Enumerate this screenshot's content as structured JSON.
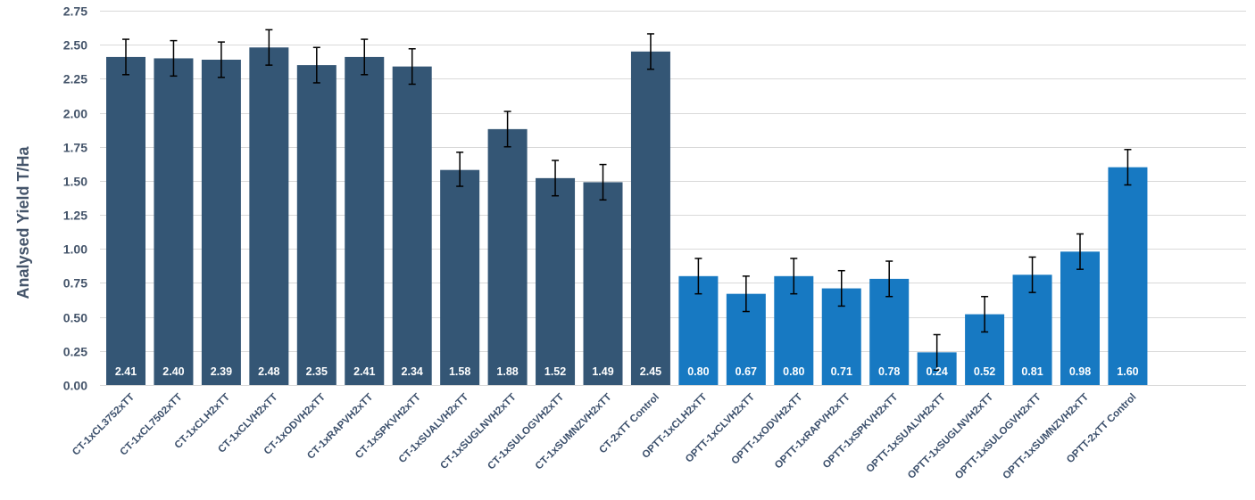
{
  "chart_data": {
    "type": "bar",
    "ylabel": "Analysed Yield T/Ha",
    "xlabel": "",
    "ylim": [
      0,
      2.75
    ],
    "yticks": [
      "0.00",
      "0.25",
      "0.50",
      "0.75",
      "1.00",
      "1.25",
      "1.50",
      "1.75",
      "2.00",
      "2.25",
      "2.50",
      "2.75"
    ],
    "grid": true,
    "colors": {
      "ct": "#345675",
      "optt": "#1779c2",
      "error": "#000000",
      "grid": "#d9d9d9"
    },
    "categories": [
      "CT-1xCL3752xTT",
      "CT-1xCL7502xTT",
      "CT-1xCLH2xTT",
      "CT-1xCLVH2xTT",
      "CT-1xODVH2xTT",
      "CT-1xRAPVH2xTT",
      "CT-1xSPKVH2xTT",
      "CT-1xSUALVH2xTT",
      "CT-1xSUGLNVH2xTT",
      "CT-1xSULOGVH2xTT",
      "CT-1xSUMNZVH2xTT",
      "CT-2xTT Control",
      "OPTT-1xCLH2xTT",
      "OPTT-1xCLVH2xTT",
      "OPTT-1xODVH2xTT",
      "OPTT-1xRAPVH2xTT",
      "OPTT-1xSPKVH2xTT",
      "OPTT-1xSUALVH2xTT",
      "OPTT-1xSUGLNVH2xTT",
      "OPTT-1xSULOGVH2xTT",
      "OPTT-1xSUMNZVH2xTT",
      "OPTT-2xTT Control"
    ],
    "values": [
      2.41,
      2.4,
      2.39,
      2.48,
      2.35,
      2.41,
      2.34,
      1.58,
      1.88,
      1.52,
      1.49,
      2.45,
      0.8,
      0.67,
      0.8,
      0.71,
      0.78,
      0.24,
      0.52,
      0.81,
      0.98,
      1.6
    ],
    "data_labels": [
      "2.41",
      "2.40",
      "2.39",
      "2.48",
      "2.35",
      "2.41",
      "2.34",
      "1.58",
      "1.88",
      "1.52",
      "1.49",
      "2.45",
      "0.80",
      "0.67",
      "0.80",
      "0.71",
      "0.78",
      "0.24",
      "0.52",
      "0.81",
      "0.98",
      "1.60"
    ],
    "groups": [
      "ct",
      "ct",
      "ct",
      "ct",
      "ct",
      "ct",
      "ct",
      "ct",
      "ct",
      "ct",
      "ct",
      "ct",
      "optt",
      "optt",
      "optt",
      "optt",
      "optt",
      "optt",
      "optt",
      "optt",
      "optt",
      "optt"
    ],
    "error_low": [
      2.28,
      2.27,
      2.26,
      2.35,
      2.22,
      2.28,
      2.21,
      1.46,
      1.75,
      1.39,
      1.36,
      2.32,
      0.67,
      0.54,
      0.67,
      0.58,
      0.65,
      0.11,
      0.39,
      0.68,
      0.85,
      1.47
    ],
    "error_high": [
      2.54,
      2.53,
      2.52,
      2.61,
      2.48,
      2.54,
      2.47,
      1.71,
      2.01,
      1.65,
      1.62,
      2.58,
      0.93,
      0.8,
      0.93,
      0.84,
      0.91,
      0.37,
      0.65,
      0.94,
      1.11,
      1.73
    ]
  }
}
